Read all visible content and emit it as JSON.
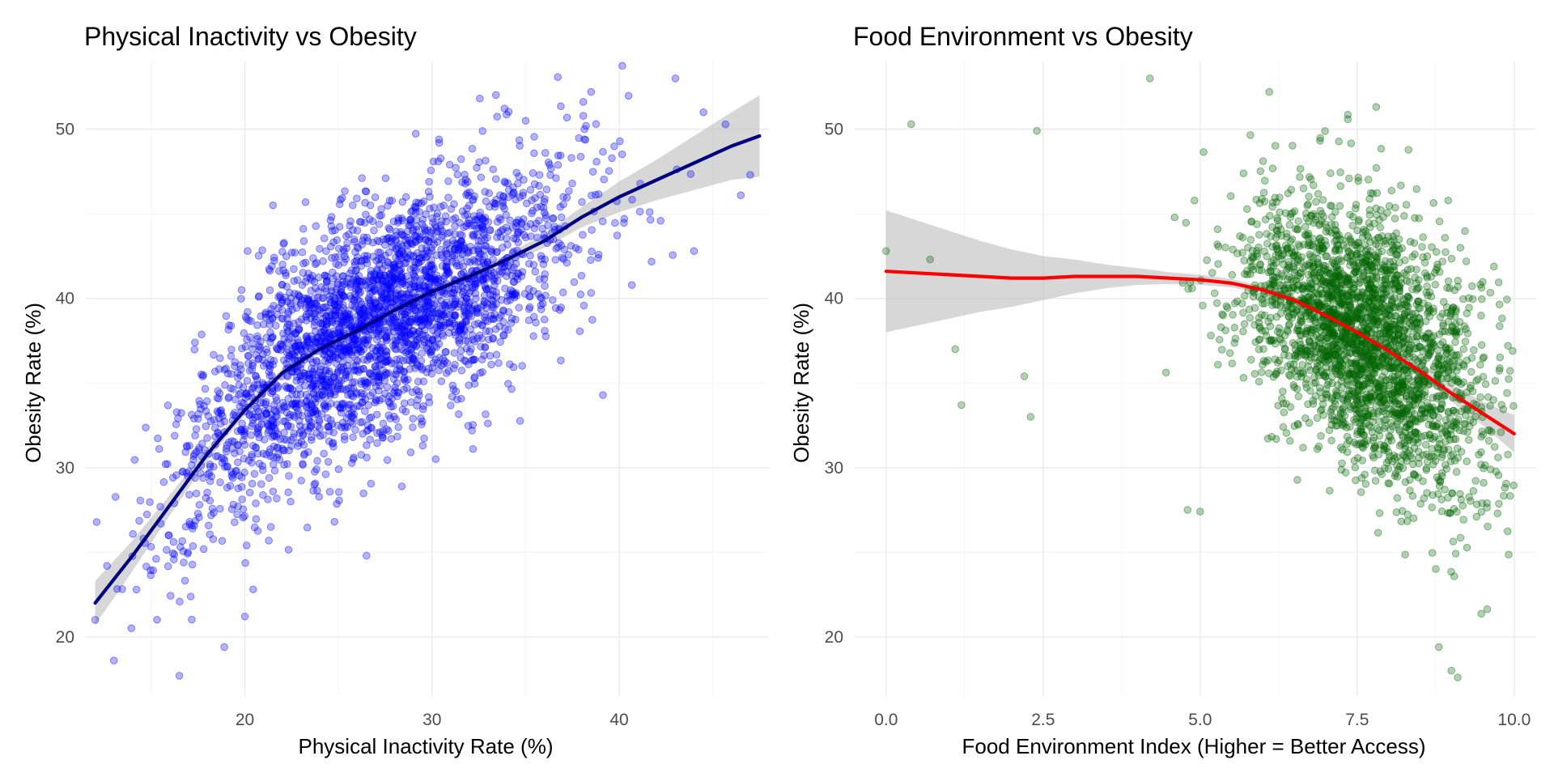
{
  "chart_data": [
    {
      "type": "scatter",
      "title": "Physical Inactivity vs Obesity",
      "xlabel": "Physical Inactivity Rate (%)",
      "ylabel": "Obesity Rate (%)",
      "xlim": [
        11.5,
        48
      ],
      "ylim": [
        16.5,
        54
      ],
      "xticks": [
        20,
        30,
        40
      ],
      "yticks": [
        20,
        30,
        40,
        50
      ],
      "grid": true,
      "point_color": "#0000ff",
      "point_opacity": 0.3,
      "trend_color": "#000080",
      "band_color": "#bdbdbd",
      "cloud": {
        "x_min": 12,
        "x_max": 47,
        "x_center": 27,
        "x_sd": 5,
        "y_sd": 3.3,
        "n": 3000
      },
      "trend": {
        "x": [
          12,
          14,
          16,
          18,
          20,
          22,
          24,
          26,
          28,
          30,
          32,
          34,
          36,
          38,
          40,
          42,
          44,
          46,
          47.5
        ],
        "y": [
          22.0,
          24.8,
          27.8,
          30.8,
          33.4,
          35.6,
          37.0,
          38.1,
          39.3,
          40.4,
          41.3,
          42.3,
          43.4,
          44.8,
          46.0,
          47.0,
          48.0,
          49.0,
          49.6
        ],
        "band_halfwidth": [
          1.3,
          0.9,
          0.6,
          0.4,
          0.3,
          0.25,
          0.2,
          0.2,
          0.2,
          0.2,
          0.25,
          0.3,
          0.4,
          0.6,
          0.9,
          1.2,
          1.6,
          2.0,
          2.4
        ]
      },
      "highlights": [
        {
          "x": 12,
          "y": 21
        },
        {
          "x": 13,
          "y": 18.6
        },
        {
          "x": 16.5,
          "y": 17.7
        },
        {
          "x": 18.9,
          "y": 19.4
        },
        {
          "x": 20,
          "y": 21.2
        },
        {
          "x": 35,
          "y": 50.5
        },
        {
          "x": 38.5,
          "y": 52.2
        },
        {
          "x": 43,
          "y": 53
        },
        {
          "x": 44.5,
          "y": 51
        },
        {
          "x": 47,
          "y": 47.3
        },
        {
          "x": 46.5,
          "y": 46.1
        },
        {
          "x": 44,
          "y": 42.8
        },
        {
          "x": 26.5,
          "y": 24.8
        },
        {
          "x": 30.2,
          "y": 30.5
        },
        {
          "x": 21.5,
          "y": 45.5
        }
      ]
    },
    {
      "type": "scatter",
      "title": "Food Environment vs Obesity",
      "xlabel": "Food Environment Index (Higher = Better Access)",
      "ylabel": "Obesity Rate (%)",
      "xlim": [
        -0.5,
        10.35
      ],
      "ylim": [
        16.5,
        54
      ],
      "xticks": [
        0.0,
        2.5,
        5.0,
        7.5,
        10.0
      ],
      "xtick_labels": [
        "0.0",
        "2.5",
        "5.0",
        "7.5",
        "10.0"
      ],
      "yticks": [
        20,
        30,
        40,
        50
      ],
      "grid": true,
      "point_color": "#006400",
      "point_opacity": 0.3,
      "trend_color": "#ff0000",
      "band_color": "#bdbdbd",
      "cloud": {
        "x_min": 2.5,
        "x_max": 10,
        "x_center": 7.6,
        "x_sd": 0.95,
        "y_base": 39,
        "y_sd": 4.0,
        "n": 2700
      },
      "trend": {
        "x": [
          0,
          0.5,
          1,
          1.5,
          2,
          2.5,
          3,
          3.5,
          4,
          4.5,
          5,
          5.5,
          6,
          6.5,
          7,
          7.5,
          8,
          8.5,
          9,
          9.5,
          10
        ],
        "y": [
          41.6,
          41.5,
          41.4,
          41.3,
          41.2,
          41.2,
          41.3,
          41.3,
          41.3,
          41.2,
          41.1,
          40.9,
          40.5,
          39.9,
          39.0,
          38.0,
          36.9,
          35.7,
          34.4,
          33.2,
          32.0
        ],
        "band_halfwidth": [
          3.6,
          3.1,
          2.6,
          2.1,
          1.7,
          1.3,
          1.0,
          0.7,
          0.5,
          0.35,
          0.3,
          0.25,
          0.2,
          0.2,
          0.2,
          0.2,
          0.25,
          0.35,
          0.5,
          0.7,
          1.1
        ]
      },
      "highlights": [
        {
          "x": 0.0,
          "y": 42.8
        },
        {
          "x": 0.4,
          "y": 50.3
        },
        {
          "x": 0.7,
          "y": 42.3
        },
        {
          "x": 1.1,
          "y": 37.0
        },
        {
          "x": 1.2,
          "y": 33.7
        },
        {
          "x": 2.2,
          "y": 35.4
        },
        {
          "x": 2.3,
          "y": 33.0
        },
        {
          "x": 2.4,
          "y": 49.9
        },
        {
          "x": 4.2,
          "y": 53.0
        },
        {
          "x": 6.1,
          "y": 52.2
        },
        {
          "x": 9.0,
          "y": 18.0
        },
        {
          "x": 9.1,
          "y": 17.6
        },
        {
          "x": 8.8,
          "y": 19.4
        },
        {
          "x": 5.0,
          "y": 27.4
        },
        {
          "x": 4.8,
          "y": 27.5
        },
        {
          "x": 9.9,
          "y": 37.2
        }
      ]
    }
  ]
}
